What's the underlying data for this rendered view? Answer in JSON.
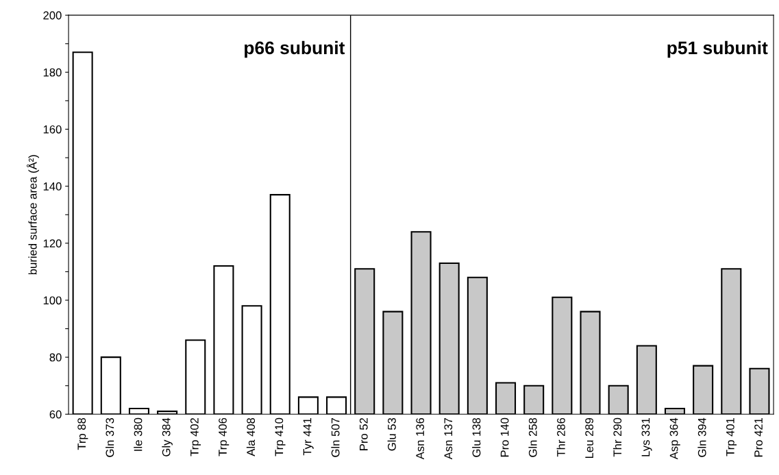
{
  "chart_data": {
    "type": "bar",
    "ylabel": "buried surface area (Å²)",
    "categories": [
      "Trp 88",
      "Gln 373",
      "Ile 380",
      "Gly 384",
      "Trp 402",
      "Trp 406",
      "Ala 408",
      "Trp 410",
      "Tyr 441",
      "Gln 507",
      "Pro 52",
      "Glu 53",
      "Asn 136",
      "Asn 137",
      "Glu 138",
      "Pro 140",
      "Gln 258",
      "Thr 286",
      "Leu 289",
      "Thr 290",
      "Lys 331",
      "Asp 364",
      "Gln 394",
      "Trp 401",
      "Pro 421"
    ],
    "series": [
      {
        "color": "#ffffff",
        "values": [
          187,
          80,
          62,
          61,
          86,
          112,
          98,
          137,
          66,
          66,
          null,
          null,
          null,
          null,
          null,
          null,
          null,
          null,
          null,
          null,
          null,
          null,
          null,
          null,
          null
        ]
      },
      {
        "color": "#c8c8c8",
        "values": [
          null,
          null,
          null,
          null,
          null,
          null,
          null,
          null,
          null,
          null,
          111,
          96,
          124,
          113,
          108,
          71,
          70,
          101,
          96,
          70,
          84,
          62,
          77,
          111,
          76
        ]
      }
    ],
    "annotations": [
      "p66 subunit",
      "p51 subunit"
    ],
    "ylim": [
      60,
      200
    ],
    "yticks": [
      60,
      {
        "value": 70,
        "label": null
      },
      80,
      {
        "value": 90,
        "label": null
      },
      100,
      {
        "value": 110,
        "label": null
      },
      120,
      {
        "value": 130,
        "label": null
      },
      140,
      {
        "value": 150,
        "label": null
      },
      160,
      {
        "value": 170,
        "label": null
      },
      180,
      {
        "value": 190,
        "label": null
      },
      200
    ],
    "grid": false,
    "legend": false
  }
}
